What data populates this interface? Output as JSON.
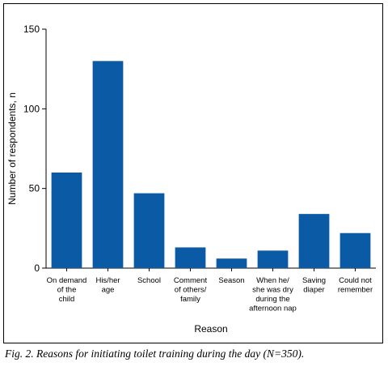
{
  "caption": "Fig. 2. Reasons for initiating toilet training during the day (N=350).",
  "chart_data": {
    "type": "bar",
    "xlabel": "Reason",
    "ylabel": "Number of respondents, n",
    "ylim": [
      0,
      150
    ],
    "yticks": [
      0,
      50,
      100,
      150
    ],
    "grid": false,
    "bar_color": "#0b5aa6",
    "categories": [
      [
        "On demand",
        "of the",
        "child"
      ],
      [
        "His/her",
        "age"
      ],
      [
        "School"
      ],
      [
        "Comment",
        "of others/",
        "family"
      ],
      [
        "Season"
      ],
      [
        "When he/",
        "she was dry",
        "during the",
        "afternoon nap"
      ],
      [
        "Saving",
        "diaper"
      ],
      [
        "Could not",
        "remember"
      ]
    ],
    "values": [
      60,
      130,
      47,
      13,
      6,
      11,
      34,
      22
    ]
  }
}
